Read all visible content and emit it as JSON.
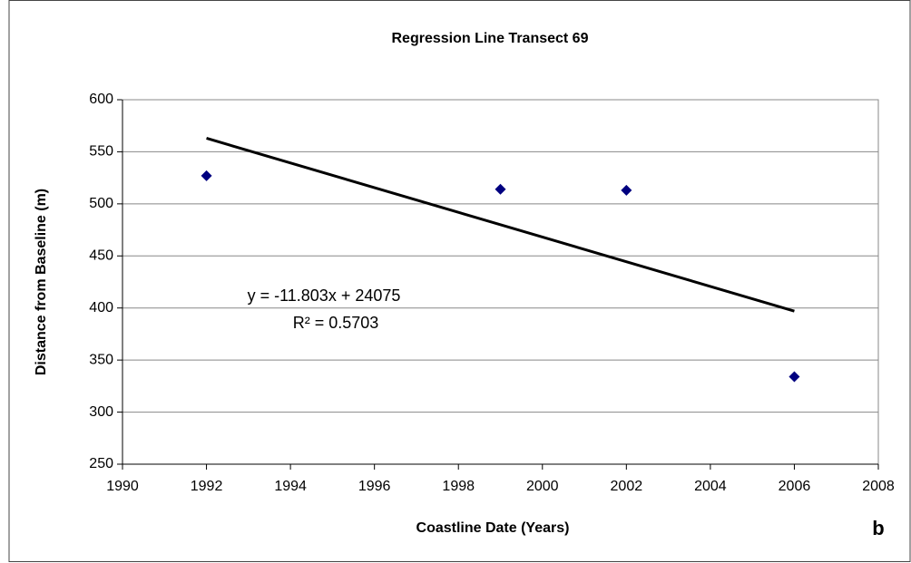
{
  "chart_data": {
    "type": "scatter",
    "title": "Regression Line Transect 69",
    "x_label": "Coastline Date (Years)",
    "y_label": "Distance from Baseline (m)",
    "panel_label": "b",
    "x": [
      1992,
      1999,
      2002,
      2006
    ],
    "values": [
      527,
      514,
      513,
      334
    ],
    "color": "#000080",
    "trendline": {
      "x": [
        1992,
        2006
      ],
      "values": [
        563,
        397
      ],
      "color": "#000000"
    },
    "annotations": [
      "y = -11.803x + 24075",
      "R² = 0.5703"
    ],
    "xlim": [
      1990,
      2008
    ],
    "xticks": [
      1990,
      1992,
      1994,
      1996,
      1998,
      2000,
      2002,
      2004,
      2006,
      2008
    ],
    "ylim": [
      250,
      600
    ],
    "yticks": [
      250,
      300,
      350,
      400,
      450,
      500,
      550,
      600
    ],
    "grid": true
  }
}
